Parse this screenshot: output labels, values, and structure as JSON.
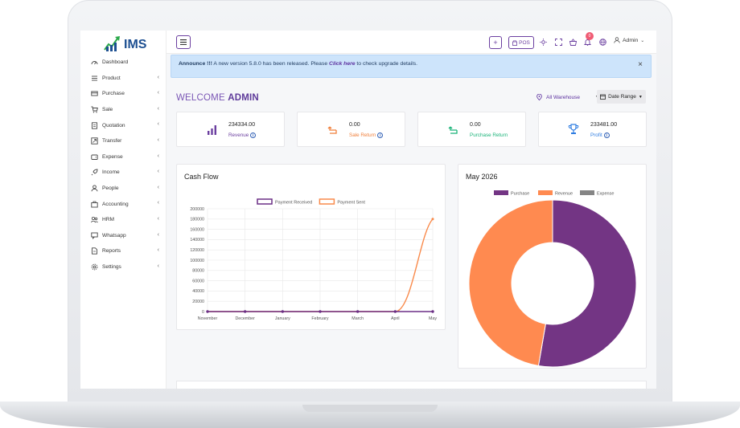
{
  "app": {
    "logo_text": "IMS"
  },
  "sidebar": {
    "items": [
      {
        "label": "Dashboard",
        "icon": "dashboard-icon",
        "has_submenu": false
      },
      {
        "label": "Product",
        "icon": "list-icon",
        "has_submenu": true
      },
      {
        "label": "Purchase",
        "icon": "card-icon",
        "has_submenu": true
      },
      {
        "label": "Sale",
        "icon": "cart-icon",
        "has_submenu": true
      },
      {
        "label": "Quotation",
        "icon": "document-icon",
        "has_submenu": true
      },
      {
        "label": "Transfer",
        "icon": "transfer-icon",
        "has_submenu": true
      },
      {
        "label": "Expense",
        "icon": "wallet-icon",
        "has_submenu": true
      },
      {
        "label": "Income",
        "icon": "rocket-icon",
        "has_submenu": true
      },
      {
        "label": "People",
        "icon": "user-icon",
        "has_submenu": true
      },
      {
        "label": "Accounting",
        "icon": "briefcase-icon",
        "has_submenu": true
      },
      {
        "label": "HRM",
        "icon": "users-icon",
        "has_submenu": true
      },
      {
        "label": "Whatsapp",
        "icon": "chat-icon",
        "has_submenu": true
      },
      {
        "label": "Reports",
        "icon": "report-icon",
        "has_submenu": true
      },
      {
        "label": "Settings",
        "icon": "gear-icon",
        "has_submenu": true
      }
    ]
  },
  "topbar": {
    "plus_label": "+",
    "pos_label": "POS",
    "notification_count": "0",
    "user_label": "Admin"
  },
  "announcement": {
    "prefix": "Announce !!!",
    "text_before": " A new version 5.8.0 has been released. Please ",
    "link_text": "Click here",
    "text_after": " to check upgrade details.",
    "close": "×"
  },
  "welcome": {
    "text": "WELCOME ",
    "user": "ADMIN"
  },
  "filters": {
    "warehouse": "All Warehouse",
    "date_range": "Date Range"
  },
  "stats": [
    {
      "value": "234334.00",
      "label": "Revenue",
      "color": "#6b3fa0",
      "icon": "bar-chart-icon"
    },
    {
      "value": "0.00",
      "label": "Sale Return",
      "color": "#f0803c",
      "icon": "return-icon"
    },
    {
      "value": "0.00",
      "label": "Purchase Return",
      "color": "#1cb47a",
      "icon": "return-icon"
    },
    {
      "value": "233481.00",
      "label": "Profit",
      "color": "#2f7de1",
      "icon": "trophy-icon"
    }
  ],
  "cashflow": {
    "title": "Cash Flow"
  },
  "month_panel": {
    "title": "May 2026"
  },
  "chart_data": [
    {
      "type": "line",
      "title": "Cash Flow",
      "categories": [
        "November",
        "December",
        "January",
        "February",
        "March",
        "April",
        "May"
      ],
      "ylim": [
        0,
        200000
      ],
      "yticks": [
        0,
        20000,
        40000,
        60000,
        80000,
        100000,
        120000,
        140000,
        160000,
        180000,
        200000
      ],
      "grid": true,
      "legend_position": "top",
      "series": [
        {
          "name": "Payment Received",
          "color": "#6b2f85",
          "values": [
            0,
            0,
            0,
            0,
            0,
            0,
            0
          ]
        },
        {
          "name": "Payment Sent",
          "color": "#f98a4b",
          "values": [
            0,
            0,
            0,
            0,
            0,
            0,
            180000
          ]
        }
      ]
    },
    {
      "type": "pie",
      "title": "May 2026",
      "legend_position": "top",
      "labels": [
        "Purchase",
        "Revenue",
        "Expense"
      ],
      "values": [
        52.7,
        47.3,
        0
      ],
      "colors": [
        "#733584",
        "#ff8a50",
        "#858585"
      ]
    }
  ]
}
